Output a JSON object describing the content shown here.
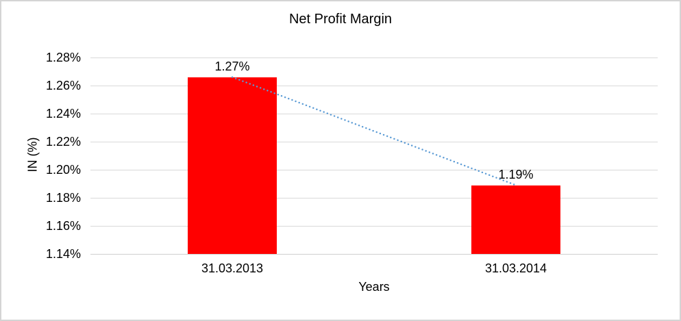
{
  "chart_data": {
    "type": "bar",
    "title": "Net Profit Margin",
    "xlabel": "Years",
    "ylabel": "IN (%)",
    "categories": [
      "31.03.2013",
      "31.03.2014"
    ],
    "values": [
      1.266,
      1.189
    ],
    "data_labels": [
      "1.27%",
      "1.19%"
    ],
    "yticks": [
      "1.28%",
      "1.26%",
      "1.24%",
      "1.22%",
      "1.20%",
      "1.18%",
      "1.16%",
      "1.14%"
    ],
    "ylim": [
      1.14,
      1.28
    ],
    "grid": "horizontal",
    "legend": "none",
    "bar_color": "#ff0000",
    "gridline_color": "#d9d9d9",
    "trendline": {
      "style": "dotted",
      "color": "#5b9bd5"
    }
  }
}
